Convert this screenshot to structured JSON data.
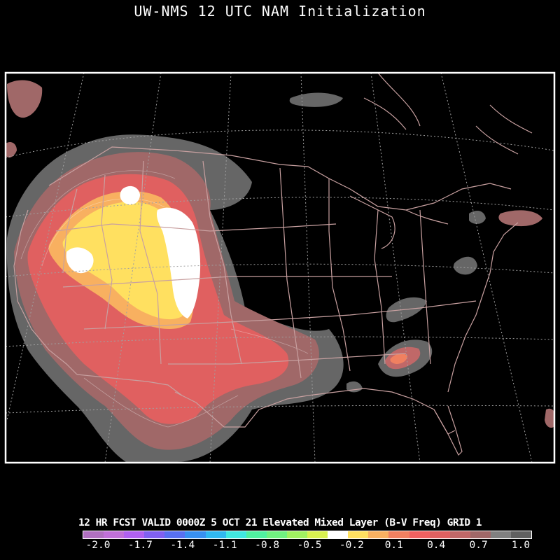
{
  "title": "UW-NMS 12 UTC NAM Initialization",
  "caption": "12 HR FCST VALID 0000Z  5 OCT 21 Elevated Mixed Layer (B-V Freq) GRID 1",
  "colorbar": {
    "ticks": [
      "-2.0",
      "-1.7",
      "-1.4",
      "-1.1",
      "-0.8",
      "-0.5",
      "-0.2",
      "0.1",
      "0.4",
      "0.7",
      "1.0"
    ],
    "colors": [
      "#b070c0",
      "#c070d8",
      "#b060f0",
      "#8060f0",
      "#5870f0",
      "#3890f0",
      "#30b8f0",
      "#40e8e0",
      "#50f0a0",
      "#70f080",
      "#a0f060",
      "#d8f050",
      "#ffffff",
      "#ffe060",
      "#f8b060",
      "#f08060",
      "#f06060",
      "#e06060",
      "#c06868",
      "#a06868",
      "#808080",
      "#606060"
    ]
  },
  "map": {
    "frame_color": "#ffffff",
    "boundary_color": "#c8a0a0",
    "gridline_color": "#a0a0a0",
    "field": "Elevated Mixed Layer (B-V Freq)",
    "regions": [
      "western-us-elevated-mixed-layer",
      "southern-plains-elevated-mixed-layer",
      "southeast-us-patch",
      "great-lakes-patch",
      "northeast-patch"
    ]
  }
}
